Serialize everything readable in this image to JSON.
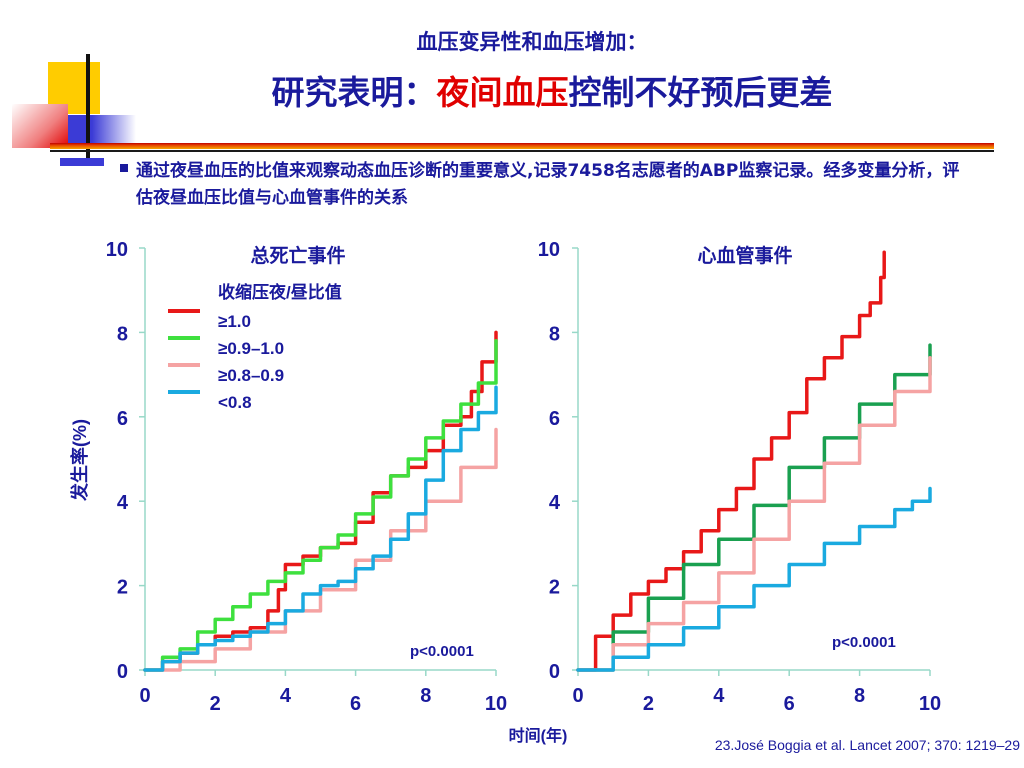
{
  "slide": {
    "subtitle": "血压变异性和血压增加：",
    "title_prefix": "研究表明：",
    "title_highlight": "夜间血压",
    "title_suffix": "控制不好预后更差",
    "intro": "通过夜昼血压的比值来观察动态血压诊断的重要意义,记录7458名志愿者的ABP监察记录。经多变量分析，评估夜昼血压比值与心血管事件的关系",
    "source": "23.José Boggia et al. Lancet 2007; 370: 1219–29"
  },
  "colors": {
    "text_blue": "#1a1a9c",
    "title_red": "#e00000",
    "axis": "#98d8c8"
  },
  "chart_data": [
    {
      "type": "line",
      "title": "总死亡事件",
      "xlabel": "时间(年)",
      "ylabel": "发生率(%)",
      "xlim": [
        0,
        10
      ],
      "ylim": [
        0,
        10
      ],
      "x_ticks": [
        0,
        2,
        4,
        6,
        8,
        10
      ],
      "y_ticks": [
        0,
        2,
        4,
        6,
        8,
        10
      ],
      "legend_title": "收缩压夜/昼比值",
      "legend_position": "top-left",
      "annotation": "p<0.0001",
      "series": [
        {
          "name": "≥1.0",
          "color": "#e81818",
          "x": [
            0,
            0.5,
            1,
            1.5,
            2,
            2.5,
            3,
            3.5,
            3.8,
            4,
            4.5,
            5,
            5.5,
            6,
            6.5,
            7,
            7.5,
            8,
            8.5,
            9,
            9.3,
            9.6,
            10
          ],
          "y": [
            0,
            0.2,
            0.4,
            0.6,
            0.8,
            0.9,
            1.0,
            1.4,
            1.9,
            2.5,
            2.7,
            2.9,
            3.0,
            3.5,
            4.2,
            4.6,
            4.8,
            5.2,
            5.8,
            6.0,
            6.6,
            7.3,
            8.0
          ]
        },
        {
          "name": "≥0.9–1.0",
          "color": "#3ee03e",
          "x": [
            0,
            0.5,
            1,
            1.5,
            2,
            2.5,
            3,
            3.5,
            4,
            4.5,
            5,
            5.5,
            6,
            6.5,
            7,
            7.5,
            8,
            8.5,
            9,
            9.5,
            10
          ],
          "y": [
            0,
            0.3,
            0.5,
            0.9,
            1.2,
            1.5,
            1.8,
            2.1,
            2.3,
            2.6,
            2.9,
            3.2,
            3.7,
            4.1,
            4.6,
            5.0,
            5.5,
            5.9,
            6.3,
            6.8,
            7.8
          ]
        },
        {
          "name": "≥0.8–0.9",
          "color": "#f5a3a3",
          "x": [
            0,
            1,
            2,
            3,
            4,
            5,
            6,
            7,
            8,
            9,
            10
          ],
          "y": [
            0,
            0.2,
            0.5,
            0.9,
            1.4,
            1.9,
            2.6,
            3.3,
            4.0,
            4.8,
            5.7
          ]
        },
        {
          "name": "<0.8",
          "color": "#1aaae0",
          "x": [
            0,
            0.5,
            1,
            1.5,
            2,
            2.5,
            3,
            3.5,
            4,
            4.5,
            5,
            5.5,
            6,
            6.5,
            7,
            7.5,
            8,
            8.5,
            9,
            9.5,
            10
          ],
          "y": [
            0,
            0.2,
            0.4,
            0.6,
            0.7,
            0.8,
            0.9,
            1.1,
            1.4,
            1.8,
            2.0,
            2.1,
            2.4,
            2.7,
            3.1,
            3.7,
            4.5,
            5.2,
            5.7,
            6.1,
            6.7
          ]
        }
      ]
    },
    {
      "type": "line",
      "title": "心血管事件",
      "xlabel": "时间(年)",
      "ylabel": "",
      "xlim": [
        0,
        10
      ],
      "ylim": [
        0,
        10
      ],
      "x_ticks": [
        0,
        2,
        4,
        6,
        8,
        10
      ],
      "y_ticks": [
        0,
        2,
        4,
        6,
        8,
        10
      ],
      "annotation": "p<0.0001",
      "series": [
        {
          "color": "#e81818",
          "x": [
            0,
            0.5,
            1,
            1.5,
            2,
            2.5,
            3,
            3.5,
            4,
            4.5,
            5,
            5.5,
            6,
            6.5,
            7,
            7.5,
            8,
            8.3,
            8.6,
            8.7
          ],
          "y": [
            0,
            0.8,
            1.3,
            1.8,
            2.1,
            2.4,
            2.8,
            3.3,
            3.8,
            4.3,
            5.0,
            5.5,
            6.1,
            6.9,
            7.4,
            7.9,
            8.4,
            8.7,
            9.3,
            9.9
          ]
        },
        {
          "color": "#1aa050",
          "x": [
            0,
            1,
            2,
            3,
            4,
            5,
            6,
            7,
            8,
            9,
            10
          ],
          "y": [
            0,
            0.9,
            1.7,
            2.5,
            3.1,
            3.9,
            4.8,
            5.5,
            6.3,
            7.0,
            7.7
          ]
        },
        {
          "color": "#f5a3a3",
          "x": [
            0,
            1,
            2,
            3,
            4,
            5,
            6,
            7,
            8,
            9,
            10
          ],
          "y": [
            0,
            0.6,
            1.1,
            1.6,
            2.3,
            3.1,
            4.0,
            4.9,
            5.8,
            6.6,
            7.4
          ]
        },
        {
          "color": "#1aaae0",
          "x": [
            0,
            1,
            2,
            3,
            4,
            5,
            6,
            7,
            8,
            9,
            9.5,
            10
          ],
          "y": [
            0,
            0.3,
            0.6,
            1.0,
            1.5,
            2.0,
            2.5,
            3.0,
            3.4,
            3.8,
            4.0,
            4.3
          ]
        }
      ]
    }
  ]
}
